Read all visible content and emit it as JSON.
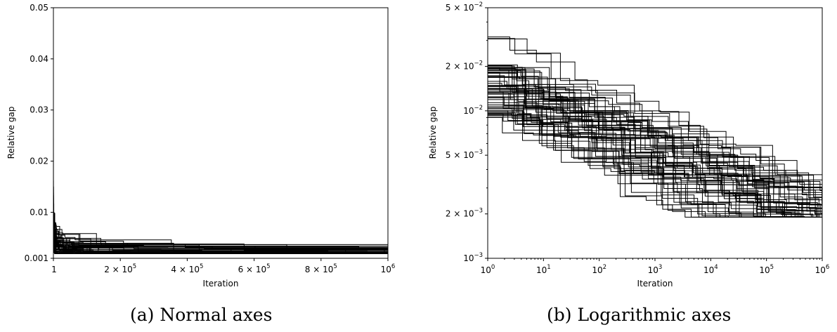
{
  "chart_data": [
    {
      "type": "line",
      "panel": "a",
      "caption": "(a) Normal axes",
      "xlabel": "Iteration",
      "ylabel": "Relative gap",
      "xscale": "linear",
      "yscale": "linear",
      "xlim": [
        1,
        1000000
      ],
      "ylim": [
        0.001,
        0.05
      ],
      "xticks": [
        {
          "value": 1,
          "label": "1"
        },
        {
          "value": 200000,
          "mant": "2 × 10",
          "exp": "5"
        },
        {
          "value": 400000,
          "mant": "4 × 10",
          "exp": "5"
        },
        {
          "value": 600000,
          "mant": "6 × 10",
          "exp": "5"
        },
        {
          "value": 800000,
          "mant": "8 × 10",
          "exp": "5"
        },
        {
          "value": 1000000,
          "mant": "10",
          "exp": "6"
        }
      ],
      "yticks": [
        {
          "value": 0.001,
          "label": "0.001"
        },
        {
          "value": 0.01,
          "label": "0.01"
        },
        {
          "value": 0.02,
          "label": "0.02"
        },
        {
          "value": 0.03,
          "label": "0.03"
        },
        {
          "value": 0.04,
          "label": "0.04"
        },
        {
          "value": 0.05,
          "label": "0.05"
        }
      ],
      "grid": false,
      "line_color": "#000000",
      "series_count": 60
    },
    {
      "type": "line",
      "panel": "b",
      "caption": "(b) Logarithmic axes",
      "xlabel": "Iteration",
      "ylabel": "Relative gap",
      "xscale": "log",
      "yscale": "log",
      "xlim": [
        1,
        1000000
      ],
      "ylim": [
        0.001,
        0.05
      ],
      "xticks": [
        {
          "value": 1,
          "mant": "10",
          "exp": "0"
        },
        {
          "value": 10,
          "mant": "10",
          "exp": "1"
        },
        {
          "value": 100,
          "mant": "10",
          "exp": "2"
        },
        {
          "value": 1000,
          "mant": "10",
          "exp": "3"
        },
        {
          "value": 10000,
          "mant": "10",
          "exp": "4"
        },
        {
          "value": 100000,
          "mant": "10",
          "exp": "5"
        },
        {
          "value": 1000000,
          "mant": "10",
          "exp": "6"
        }
      ],
      "yticks": [
        {
          "value": 0.001,
          "mant": "10",
          "exp": "−3"
        },
        {
          "value": 0.002,
          "mant": "2 × 10",
          "exp": "−3"
        },
        {
          "value": 0.005,
          "mant": "5 × 10",
          "exp": "−3"
        },
        {
          "value": 0.01,
          "mant": "10",
          "exp": "−2"
        },
        {
          "value": 0.02,
          "mant": "2 × 10",
          "exp": "−2"
        },
        {
          "value": 0.05,
          "mant": "5 × 10",
          "exp": "−2"
        }
      ],
      "grid": false,
      "line_color": "#000000",
      "series_count": 60
    }
  ]
}
